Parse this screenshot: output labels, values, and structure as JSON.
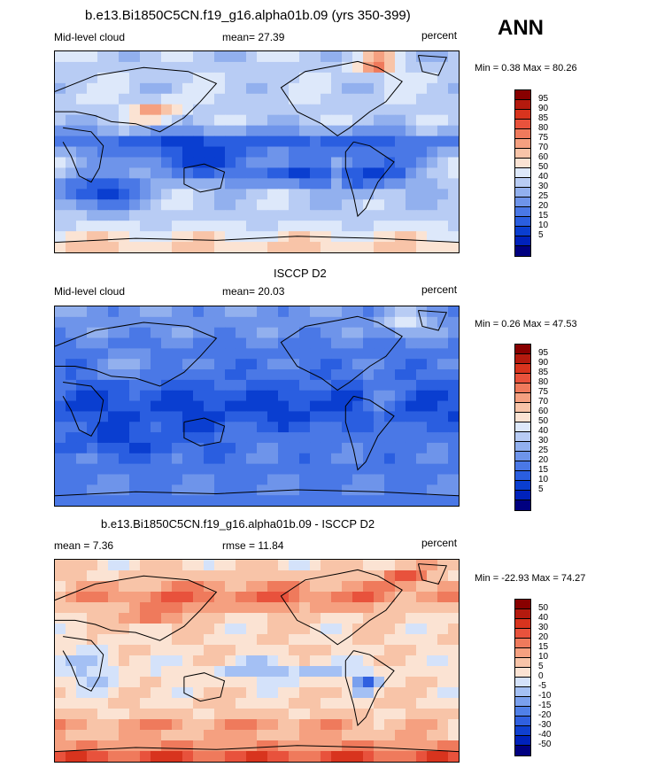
{
  "season": "ANN",
  "colors": {
    "cloud_scale": [
      "#000080",
      "#0022bb",
      "#0a3ed0",
      "#2a5ee0",
      "#4a78e6",
      "#6e94ea",
      "#92b0ee",
      "#b8ccf4",
      "#dde8fa",
      "#fbe3d3",
      "#f8c4a8",
      "#f5a080",
      "#ef7a5c",
      "#e8523c",
      "#d8341e",
      "#b41a0e",
      "#880000"
    ],
    "diff_scale": [
      "#000080",
      "#0022bb",
      "#1040d0",
      "#3060e0",
      "#5080e8",
      "#7aa0ee",
      "#a4c0f4",
      "#d4e2fa",
      "#fbe3d3",
      "#f8c4a8",
      "#f5a080",
      "#ef7a5c",
      "#e8523c",
      "#d8341e",
      "#b41a0e",
      "#880000"
    ],
    "land": "#000000"
  },
  "panels": [
    {
      "title": "b.e13.Bi1850C5CN.f19_g16.alpha01b.09 (yrs 350-399)",
      "left_label": "Mid-level cloud",
      "mean_label": "mean=  27.39",
      "units": "percent",
      "minmax": "Min =   0.38 Max =  80.26",
      "levels": [
        "95",
        "90",
        "85",
        "80",
        "75",
        "70",
        "60",
        "50",
        "40",
        "30",
        "25",
        "20",
        "15",
        "10",
        "5"
      ]
    },
    {
      "title": "ISCCP D2",
      "left_label": "Mid-level cloud",
      "mean_label": "mean=  20.03",
      "units": "percent",
      "minmax": "Min =   0.26 Max =  47.53",
      "levels": [
        "95",
        "90",
        "85",
        "80",
        "75",
        "70",
        "60",
        "50",
        "40",
        "30",
        "25",
        "20",
        "15",
        "10",
        "5"
      ]
    },
    {
      "title": "b.e13.Bi1850C5CN.f19_g16.alpha01b.09 - ISCCP D2",
      "left_label": "mean =   7.36",
      "mean_label": "rmse =  11.84",
      "units": "percent",
      "minmax": "Min = -22.93 Max =  74.27",
      "levels": [
        "50",
        "40",
        "30",
        "20",
        "15",
        "10",
        "5",
        "0",
        "-5",
        "-10",
        "-15",
        "-20",
        "-30",
        "-40",
        "-50"
      ]
    }
  ]
}
